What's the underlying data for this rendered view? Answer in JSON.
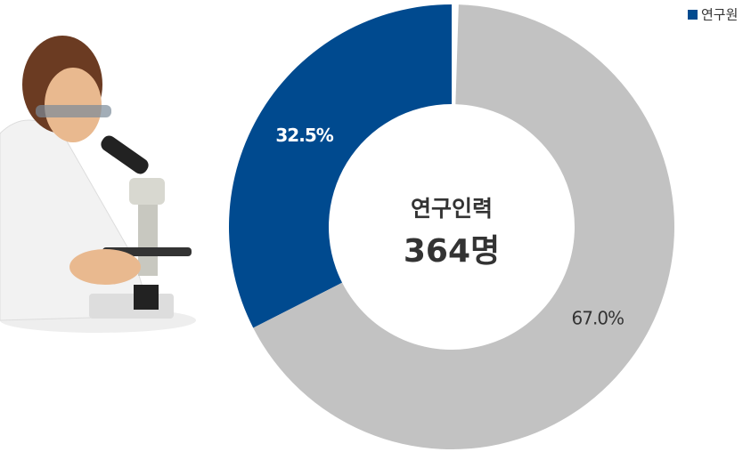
{
  "chart_data": {
    "type": "pie",
    "donut": true,
    "categories": [
      "연구원",
      null
    ],
    "values": [
      32.5,
      67.0
    ],
    "value_labels": [
      "32.5%",
      "67.0%"
    ],
    "colors": [
      "#004a8f",
      "#c2c2c2"
    ],
    "center_title": "연구인력",
    "center_value": "364명",
    "legend": "top-right"
  }
}
